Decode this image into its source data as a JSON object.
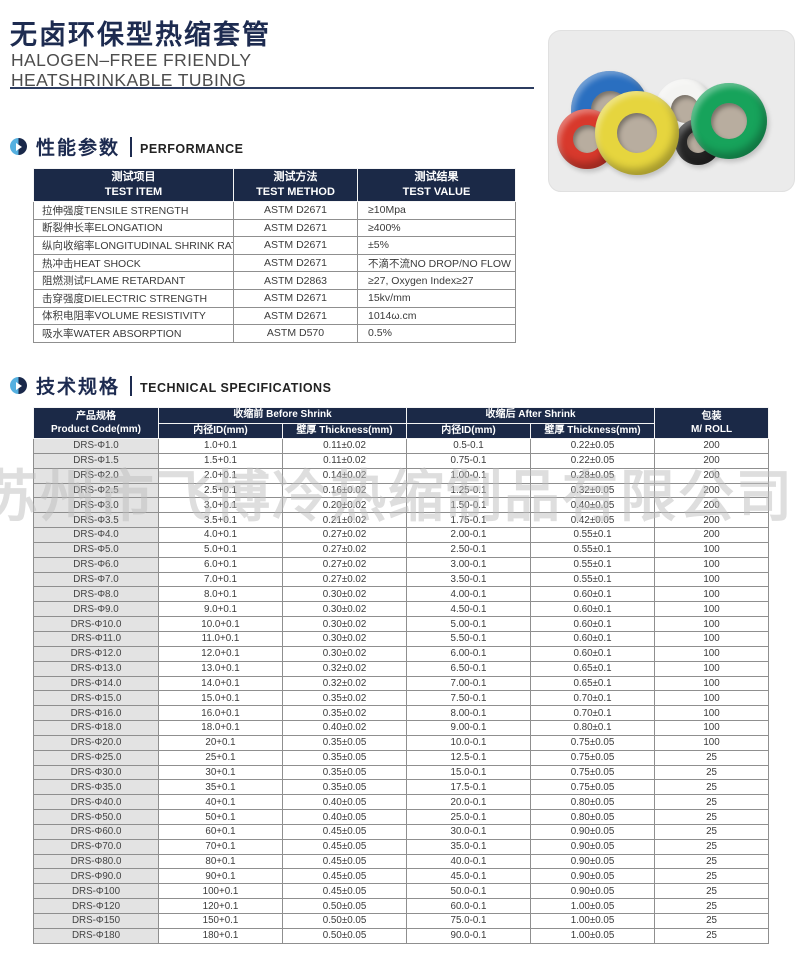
{
  "page": {
    "title": "无卤环保型热缩套管",
    "subtitle_line1": "HALOGEN–FREE FRIENDLY",
    "subtitle_line2": "HEATSHRINKABLE TUBING"
  },
  "watermark": {
    "text": "苏州市飞博冷热缩制品有限公司"
  },
  "performance": {
    "section_title_zh": "性能参数",
    "section_title_en": "PERFORMANCE",
    "columns": [
      {
        "zh": "测试项目",
        "en": "TEST ITEM"
      },
      {
        "zh": "测试方法",
        "en": "TEST METHOD"
      },
      {
        "zh": "测试结果",
        "en": "TEST VALUE"
      }
    ],
    "rows": [
      [
        "拉伸强度TENSILE STRENGTH",
        "ASTM D2671",
        "≥10Mpa"
      ],
      [
        "断裂伸长率ELONGATION",
        "ASTM D2671",
        "≥400%"
      ],
      [
        "纵向收缩率LONGITUDINAL SHRINK RATIO",
        "ASTM D2671",
        "±5%"
      ],
      [
        "热冲击HEAT SHOCK",
        "ASTM D2671",
        "不滴不流NO DROP/NO FLOW"
      ],
      [
        "阻燃测试FLAME RETARDANT",
        "ASTM D2863",
        "≥27, Oxygen Index≥27"
      ],
      [
        "击穿强度DIELECTRIC STRENGTH",
        "ASTM D2671",
        "15kv/mm"
      ],
      [
        "体积电阻率VOLUME RESISTIVITY",
        "ASTM D2671",
        "1014ω.cm"
      ],
      [
        "吸水率WATER ABSORPTION",
        "ASTM D570",
        "0.5%"
      ]
    ]
  },
  "specs": {
    "section_title_zh": "技术规格",
    "section_title_en": "TECHNICAL SPECIFICATIONS",
    "header": {
      "product_code_zh": "产品规格",
      "product_code_en": "Product Code(mm)",
      "before_shrink": "收缩前 Before Shrink",
      "after_shrink": "收缩后 After Shrink",
      "id_label": "内径ID(mm)",
      "thickness_label": "壁厚 Thickness(mm)",
      "package_zh": "包装",
      "package_en": "M/ ROLL"
    },
    "rows": [
      [
        "DRS-Φ1.0",
        "1.0+0.1",
        "0.11±0.02",
        "0.5-0.1",
        "0.22±0.05",
        "200"
      ],
      [
        "DRS-Φ1.5",
        "1.5+0.1",
        "0.11±0.02",
        "0.75-0.1",
        "0.22±0.05",
        "200"
      ],
      [
        "DRS-Φ2.0",
        "2.0+0.1",
        "0.14±0.02",
        "1.00-0.1",
        "0.28±0.05",
        "200"
      ],
      [
        "DRS-Φ2.5",
        "2.5+0.1",
        "0.16±0.02",
        "1.25-0.1",
        "0.32±0.05",
        "200"
      ],
      [
        "DRS-Φ3.0",
        "3.0+0.1",
        "0.20±0.02",
        "1.50-0.1",
        "0.40±0.05",
        "200"
      ],
      [
        "DRS-Φ3.5",
        "3.5+0.1",
        "0.21±0.02",
        "1.75-0.1",
        "0.42±0.05",
        "200"
      ],
      [
        "DRS-Φ4.0",
        "4.0+0.1",
        "0.27±0.02",
        "2.00-0.1",
        "0.55±0.1",
        "200"
      ],
      [
        "DRS-Φ5.0",
        "5.0+0.1",
        "0.27±0.02",
        "2.50-0.1",
        "0.55±0.1",
        "100"
      ],
      [
        "DRS-Φ6.0",
        "6.0+0.1",
        "0.27±0.02",
        "3.00-0.1",
        "0.55±0.1",
        "100"
      ],
      [
        "DRS-Φ7.0",
        "7.0+0.1",
        "0.27±0.02",
        "3.50-0.1",
        "0.55±0.1",
        "100"
      ],
      [
        "DRS-Φ8.0",
        "8.0+0.1",
        "0.30±0.02",
        "4.00-0.1",
        "0.60±0.1",
        "100"
      ],
      [
        "DRS-Φ9.0",
        "9.0+0.1",
        "0.30±0.02",
        "4.50-0.1",
        "0.60±0.1",
        "100"
      ],
      [
        "DRS-Φ10.0",
        "10.0+0.1",
        "0.30±0.02",
        "5.00-0.1",
        "0.60±0.1",
        "100"
      ],
      [
        "DRS-Φ11.0",
        "11.0+0.1",
        "0.30±0.02",
        "5.50-0.1",
        "0.60±0.1",
        "100"
      ],
      [
        "DRS-Φ12.0",
        "12.0+0.1",
        "0.30±0.02",
        "6.00-0.1",
        "0.60±0.1",
        "100"
      ],
      [
        "DRS-Φ13.0",
        "13.0+0.1",
        "0.32±0.02",
        "6.50-0.1",
        "0.65±0.1",
        "100"
      ],
      [
        "DRS-Φ14.0",
        "14.0+0.1",
        "0.32±0.02",
        "7.00-0.1",
        "0.65±0.1",
        "100"
      ],
      [
        "DRS-Φ15.0",
        "15.0+0.1",
        "0.35±0.02",
        "7.50-0.1",
        "0.70±0.1",
        "100"
      ],
      [
        "DRS-Φ16.0",
        "16.0+0.1",
        "0.35±0.02",
        "8.00-0.1",
        "0.70±0.1",
        "100"
      ],
      [
        "DRS-Φ18.0",
        "18.0+0.1",
        "0.40±0.02",
        "9.00-0.1",
        "0.80±0.1",
        "100"
      ],
      [
        "DRS-Φ20.0",
        "20+0.1",
        "0.35±0.05",
        "10.0-0.1",
        "0.75±0.05",
        "100"
      ],
      [
        "DRS-Φ25.0",
        "25+0.1",
        "0.35±0.05",
        "12.5-0.1",
        "0.75±0.05",
        "25"
      ],
      [
        "DRS-Φ30.0",
        "30+0.1",
        "0.35±0.05",
        "15.0-0.1",
        "0.75±0.05",
        "25"
      ],
      [
        "DRS-Φ35.0",
        "35+0.1",
        "0.35±0.05",
        "17.5-0.1",
        "0.75±0.05",
        "25"
      ],
      [
        "DRS-Φ40.0",
        "40+0.1",
        "0.40±0.05",
        "20.0-0.1",
        "0.80±0.05",
        "25"
      ],
      [
        "DRS-Φ50.0",
        "50+0.1",
        "0.40±0.05",
        "25.0-0.1",
        "0.80±0.05",
        "25"
      ],
      [
        "DRS-Φ60.0",
        "60+0.1",
        "0.45±0.05",
        "30.0-0.1",
        "0.90±0.05",
        "25"
      ],
      [
        "DRS-Φ70.0",
        "70+0.1",
        "0.45±0.05",
        "35.0-0.1",
        "0.90±0.05",
        "25"
      ],
      [
        "DRS-Φ80.0",
        "80+0.1",
        "0.45±0.05",
        "40.0-0.1",
        "0.90±0.05",
        "25"
      ],
      [
        "DRS-Φ90.0",
        "90+0.1",
        "0.45±0.05",
        "45.0-0.1",
        "0.90±0.05",
        "25"
      ],
      [
        "DRS-Φ100",
        "100+0.1",
        "0.45±0.05",
        "50.0-0.1",
        "0.90±0.05",
        "25"
      ],
      [
        "DRS-Φ120",
        "120+0.1",
        "0.50±0.05",
        "60.0-0.1",
        "1.00±0.05",
        "25"
      ],
      [
        "DRS-Φ150",
        "150+0.1",
        "0.50±0.05",
        "75.0-0.1",
        "1.00±0.05",
        "25"
      ],
      [
        "DRS-Φ180",
        "180+0.1",
        "0.50±0.05",
        "90.0-0.1",
        "1.00±0.05",
        "25"
      ]
    ]
  },
  "colors": {
    "navy_header": "#1b2947",
    "title_navy": "#1d2b50",
    "icon_blue": "#55b0e0",
    "first_col_gray": "#e3e3e3",
    "watermark_gray": "#bebebe",
    "photo_bg": "#ebebeb",
    "roll_core": "#b8ad9f",
    "rolls": [
      {
        "name": "red",
        "hex": "#d8392c"
      },
      {
        "name": "blue",
        "hex": "#2a6fc0"
      },
      {
        "name": "yellow",
        "hex": "#e6d53e"
      },
      {
        "name": "white",
        "hex": "#f4f4f2"
      },
      {
        "name": "black",
        "hex": "#262626"
      },
      {
        "name": "green",
        "hex": "#17a35b"
      }
    ]
  }
}
